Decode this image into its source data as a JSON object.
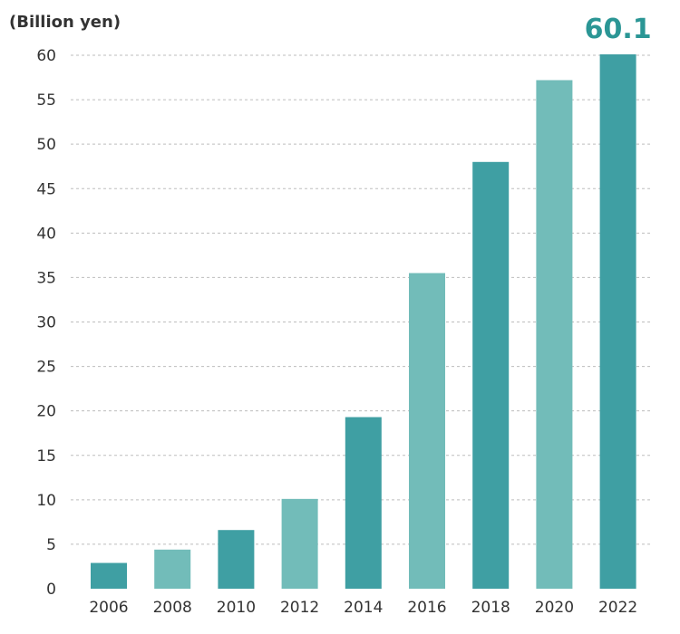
{
  "chart_data": {
    "type": "bar",
    "ylabel": "(Billion yen)",
    "categories": [
      "2006",
      "2008",
      "2010",
      "2012",
      "2014",
      "2016",
      "2018",
      "2020",
      "2022"
    ],
    "values": [
      2.9,
      4.4,
      6.6,
      10.1,
      19.3,
      35.5,
      48.0,
      57.2,
      60.1
    ],
    "ylim": [
      0,
      60
    ],
    "yticks": [
      0,
      5,
      10,
      15,
      20,
      25,
      30,
      35,
      40,
      45,
      50,
      55,
      60
    ],
    "grid": true,
    "data_labels": [
      {
        "category": "2022",
        "text": "60.1"
      }
    ],
    "colors": {
      "dark": "#3f9fa3",
      "light": "#72bcb9",
      "label": "#2b9695",
      "pattern": [
        "dark",
        "light",
        "dark",
        "light",
        "dark",
        "light",
        "dark",
        "light",
        "dark"
      ]
    }
  }
}
